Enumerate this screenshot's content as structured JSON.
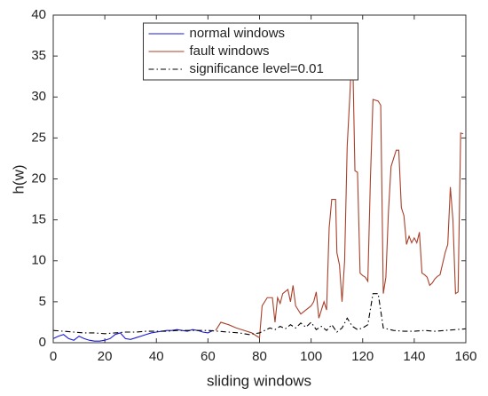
{
  "chart_data": {
    "type": "line",
    "xlabel": "sliding windows",
    "ylabel": "h(w)",
    "xlim": [
      0,
      160
    ],
    "ylim": [
      0,
      40
    ],
    "xticks": [
      0,
      20,
      40,
      60,
      80,
      100,
      120,
      140,
      160
    ],
    "yticks": [
      0,
      5,
      10,
      15,
      20,
      25,
      30,
      35,
      40
    ],
    "grid": false,
    "legend": "upper center",
    "series": [
      {
        "name": "normal windows",
        "color": "#1a1ad6",
        "dash": "solid",
        "x": [
          0,
          2,
          4,
          6,
          8,
          10,
          12,
          14,
          16,
          18,
          20,
          22,
          24,
          26,
          28,
          30,
          32,
          34,
          36,
          38,
          40,
          42,
          44,
          46,
          48,
          50,
          52,
          54,
          56,
          58,
          60,
          62
        ],
        "values": [
          0.5,
          0.8,
          1.0,
          0.5,
          0.3,
          0.8,
          0.5,
          0.3,
          0.2,
          0.2,
          0.3,
          0.5,
          1.0,
          1.2,
          0.5,
          0.4,
          0.6,
          0.8,
          1.0,
          1.2,
          1.3,
          1.4,
          1.5,
          1.5,
          1.6,
          1.5,
          1.4,
          1.6,
          1.5,
          1.3,
          1.2,
          1.5
        ]
      },
      {
        "name": "fault windows",
        "color": "#a8402a",
        "dash": "solid",
        "x": [
          63,
          65,
          68,
          71,
          74,
          77,
          79,
          80,
          81,
          83,
          85,
          86,
          87,
          88,
          89,
          91,
          92,
          93,
          94,
          96,
          98,
          100,
          101,
          102,
          103,
          105,
          106,
          107,
          108,
          109.5,
          110,
          111,
          112,
          113,
          114,
          115,
          116,
          117,
          118,
          119,
          120,
          121,
          122,
          123,
          124,
          126,
          127,
          128,
          129,
          130,
          131,
          133,
          134,
          135,
          136,
          137,
          138,
          139,
          140,
          141,
          142,
          143,
          144,
          145,
          146,
          147,
          148,
          149,
          150,
          152,
          153,
          154,
          155,
          156,
          157,
          158,
          159
        ],
        "values": [
          1.5,
          2.5,
          2.2,
          1.8,
          1.5,
          1.2,
          0.8,
          0.6,
          4.5,
          5.5,
          5.5,
          2.5,
          5.5,
          4.8,
          6,
          6.5,
          5,
          7,
          4.5,
          3.5,
          4,
          4.5,
          5,
          6.2,
          3,
          5,
          4,
          14,
          17.5,
          17.5,
          11,
          9.5,
          5,
          10,
          24,
          30,
          37.2,
          21,
          20.8,
          8.5,
          8.2,
          8,
          7.5,
          20,
          29.7,
          29.5,
          29,
          6,
          8,
          16,
          21.5,
          23.5,
          23.5,
          16.5,
          15.5,
          12,
          13,
          12.2,
          12.8,
          12.2,
          13.5,
          8.5,
          8.3,
          8,
          7,
          7.3,
          7.8,
          8.1,
          8.3,
          11,
          12,
          19,
          15,
          6,
          6.2,
          25.6,
          25.5
        ]
      },
      {
        "name": "significance level=0.01",
        "color": "#000000",
        "dash": "dashdot",
        "x": [
          0,
          4,
          8,
          12,
          16,
          20,
          24,
          28,
          32,
          36,
          40,
          44,
          48,
          52,
          56,
          60,
          64,
          68,
          72,
          76,
          80,
          84,
          86,
          88,
          90,
          92,
          94,
          96,
          98,
          100,
          102,
          104,
          106,
          108,
          110,
          112,
          114,
          116,
          118,
          120,
          122,
          124,
          126,
          128,
          132,
          136,
          140,
          144,
          148,
          152,
          156,
          160
        ],
        "values": [
          1.5,
          1.4,
          1.3,
          1.2,
          1.2,
          1.1,
          1.2,
          1.3,
          1.3,
          1.4,
          1.4,
          1.4,
          1.5,
          1.5,
          1.5,
          1.5,
          1.4,
          1.3,
          1.2,
          1.0,
          1.2,
          1.8,
          1.6,
          2.0,
          1.7,
          2.2,
          1.8,
          2.4,
          1.9,
          2.5,
          1.6,
          2.0,
          1.5,
          2.2,
          1.3,
          1.8,
          3.0,
          2.0,
          1.6,
          1.8,
          2.2,
          6.0,
          6.0,
          1.8,
          1.5,
          1.4,
          1.4,
          1.5,
          1.4,
          1.5,
          1.6,
          1.7
        ]
      }
    ]
  }
}
